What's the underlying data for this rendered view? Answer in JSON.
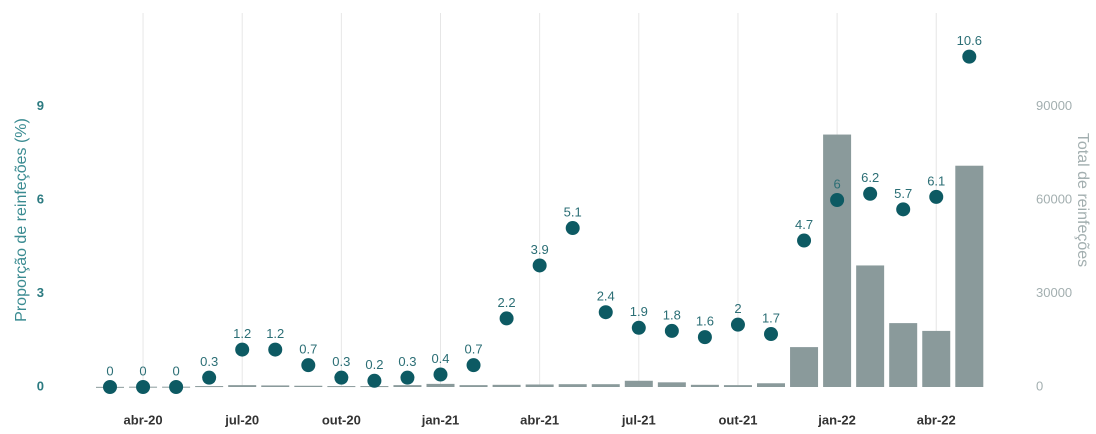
{
  "chart_data": {
    "type": "bar",
    "categories": [
      null,
      "abr-20",
      null,
      null,
      "jul-20",
      null,
      null,
      "out-20",
      null,
      null,
      "jan-21",
      null,
      null,
      "abr-21",
      null,
      null,
      "jul-21",
      null,
      null,
      "out-21",
      null,
      null,
      "jan-22",
      null,
      null,
      "abr-22",
      null
    ],
    "series": [
      {
        "name": "Total de reinfeções",
        "type": "bar",
        "axis": "y2",
        "color": "#8a9a9b",
        "values": [
          50,
          100,
          100,
          300,
          600,
          500,
          400,
          300,
          300,
          600,
          1000,
          600,
          700,
          800,
          900,
          900,
          2000,
          1500,
          700,
          600,
          1200,
          12800,
          81000,
          39000,
          20500,
          18000,
          71000
        ]
      },
      {
        "name": "Proporção de reinfeções (%)",
        "type": "scatter",
        "axis": "y",
        "color": "#0d5a63",
        "values": [
          0,
          0,
          0,
          0.3,
          1.2,
          1.2,
          0.7,
          0.3,
          0.2,
          0.3,
          0.4,
          0.7,
          2.2,
          3.9,
          5.1,
          2.4,
          1.9,
          1.8,
          1.6,
          2,
          1.7,
          4.7,
          6,
          6.2,
          5.7,
          6.1,
          10.6
        ]
      }
    ],
    "y_label": "Proporção de reinfeções (%)",
    "y2_label": "Total de reinfeções",
    "ylim": [
      0,
      12
    ],
    "yticks": [
      0,
      3,
      6,
      9
    ],
    "y2lim": [
      0,
      120000
    ],
    "y2ticks": [
      0,
      30000,
      60000,
      90000
    ],
    "grid": true
  }
}
